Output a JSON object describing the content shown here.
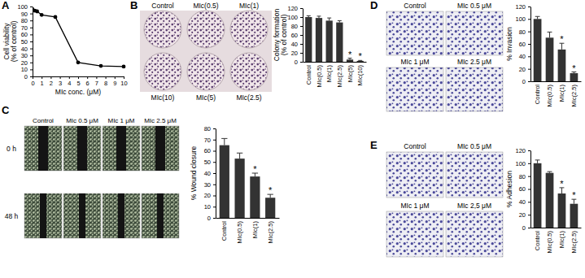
{
  "chart_data": [
    {
      "type": "line",
      "title": "A",
      "x_label": "MIc conc. (μM)",
      "y_label": [
        "Cell viability",
        "(% of control)"
      ],
      "x": [
        0,
        0.25,
        0.5,
        1,
        2.5,
        5,
        7.5,
        10
      ],
      "values": [
        96,
        94,
        93,
        88,
        85,
        20,
        15,
        14
      ],
      "xlim": [
        0,
        10
      ],
      "xticks": [
        0,
        1,
        2,
        3,
        4,
        5,
        6,
        7,
        8,
        9,
        10
      ],
      "ylim": [
        0,
        100
      ],
      "yticks": [
        0,
        10,
        20,
        30,
        40,
        50,
        60,
        70,
        80,
        90,
        100
      ],
      "color": "#000000",
      "marker": "circle"
    },
    {
      "type": "bar",
      "title": "B",
      "annotations": {
        "top": [
          "Control",
          "MIc(0.5)",
          "MIc(1)"
        ],
        "bottom": [
          "MIc(10)",
          "MIc(5)",
          "MIc(2.5)"
        ]
      },
      "y_label": [
        "Colony formation",
        "(% of control)"
      ],
      "categories": [
        "Control",
        "MIc(0.5)",
        "MIc(1)",
        "MIc(2.5)",
        "MIc(5)",
        "MIc(10)"
      ],
      "values": [
        100,
        98,
        92,
        88,
        5,
        2
      ],
      "errors": [
        3,
        4,
        6,
        4,
        3,
        1
      ],
      "significance": [
        null,
        null,
        null,
        null,
        "*",
        "*"
      ],
      "ylim": [
        0,
        120
      ],
      "yticks": [
        0,
        20,
        40,
        60,
        80,
        100,
        120
      ],
      "color": "#333333"
    },
    {
      "type": "bar",
      "title": "C",
      "annotations": {
        "columns": [
          "Control",
          "MIc 0.5 μM",
          "MIc 1 μM",
          "MIc 2.5 μM"
        ],
        "rows": [
          "0 h",
          "48 h"
        ]
      },
      "y_label": "% Wound closure",
      "categories": [
        "Control",
        "MIc(0.5)",
        "MIc(1)",
        "MIc(2.5)"
      ],
      "values": [
        65,
        53,
        37,
        18
      ],
      "errors": [
        6,
        5,
        3,
        3
      ],
      "significance": [
        null,
        null,
        "*",
        "*"
      ],
      "ylim": [
        0,
        80
      ],
      "yticks": [
        0,
        10,
        20,
        30,
        40,
        50,
        60,
        70,
        80
      ],
      "color": "#333333"
    },
    {
      "type": "bar",
      "title": "D",
      "annotations": {
        "top": [
          "Control",
          "MIc 0.5 μM"
        ],
        "bottom": [
          "MIc 1 μM",
          "MIc 2.5 μM"
        ]
      },
      "y_label": "% Invasion",
      "categories": [
        "Control",
        "MIc(0.5)",
        "MIc(1)",
        "MIc(2.5)"
      ],
      "values": [
        100,
        70,
        51,
        13
      ],
      "errors": [
        4,
        9,
        10,
        2
      ],
      "significance": [
        null,
        null,
        "*",
        "*"
      ],
      "ylim": [
        0,
        120
      ],
      "yticks": [
        0,
        20,
        40,
        60,
        80,
        100,
        120
      ],
      "color": "#333333"
    },
    {
      "type": "bar",
      "title": "E",
      "annotations": {
        "top": [
          "Control",
          "MIc 0.5 μM"
        ],
        "bottom": [
          "MIc 1 μM",
          "MIc 2,5 μM"
        ]
      },
      "y_label": "% Adhesion",
      "categories": [
        "Control",
        "MIc(0.5)",
        "MIc(1)",
        "MIc(2.5)"
      ],
      "values": [
        100,
        85,
        53,
        37
      ],
      "errors": [
        5,
        2,
        9,
        7
      ],
      "significance": [
        null,
        null,
        "*",
        "*"
      ],
      "ylim": [
        0,
        120
      ],
      "yticks": [
        0,
        20,
        40,
        60,
        80,
        100,
        120
      ],
      "color": "#333333"
    }
  ]
}
